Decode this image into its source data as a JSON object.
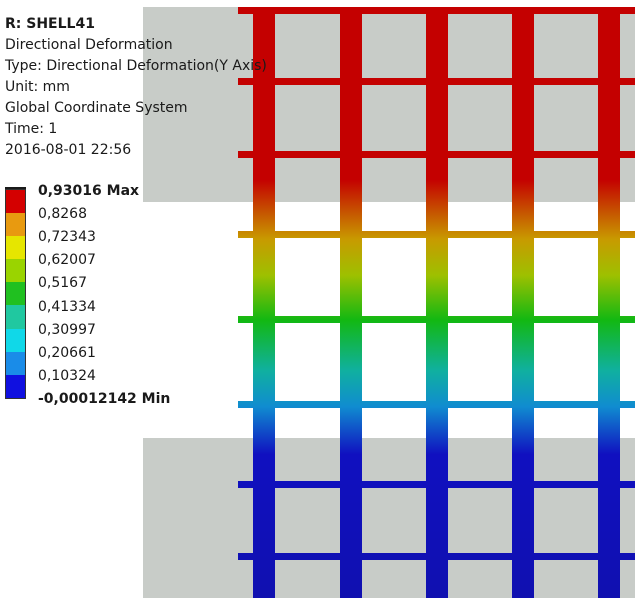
{
  "result_info": {
    "title": "R: SHELL41",
    "lines": [
      "Directional Deformation",
      "Type: Directional Deformation(Y Axis)",
      "Unit: mm",
      "Global Coordinate System",
      "Time: 1",
      "2016-08-01 22:56"
    ]
  },
  "legend": {
    "max_label": "0,93016 Max",
    "min_label": "-0,00012142 Min",
    "levels": [
      "0,8268",
      "0,72343",
      "0,62007",
      "0,5167",
      "0,41334",
      "0,30997",
      "0,20661",
      "0,10324"
    ],
    "colors": [
      "#d40000",
      "#e89a10",
      "#e6e600",
      "#9ad400",
      "#20c020",
      "#20c8a0",
      "#10d8e8",
      "#1a8ce8",
      "#1010e0"
    ]
  },
  "model": {
    "background_plate_color": "#c8ccc8",
    "contour_top_color": "#c40000",
    "contour_bottom_color": "#1010b0"
  }
}
